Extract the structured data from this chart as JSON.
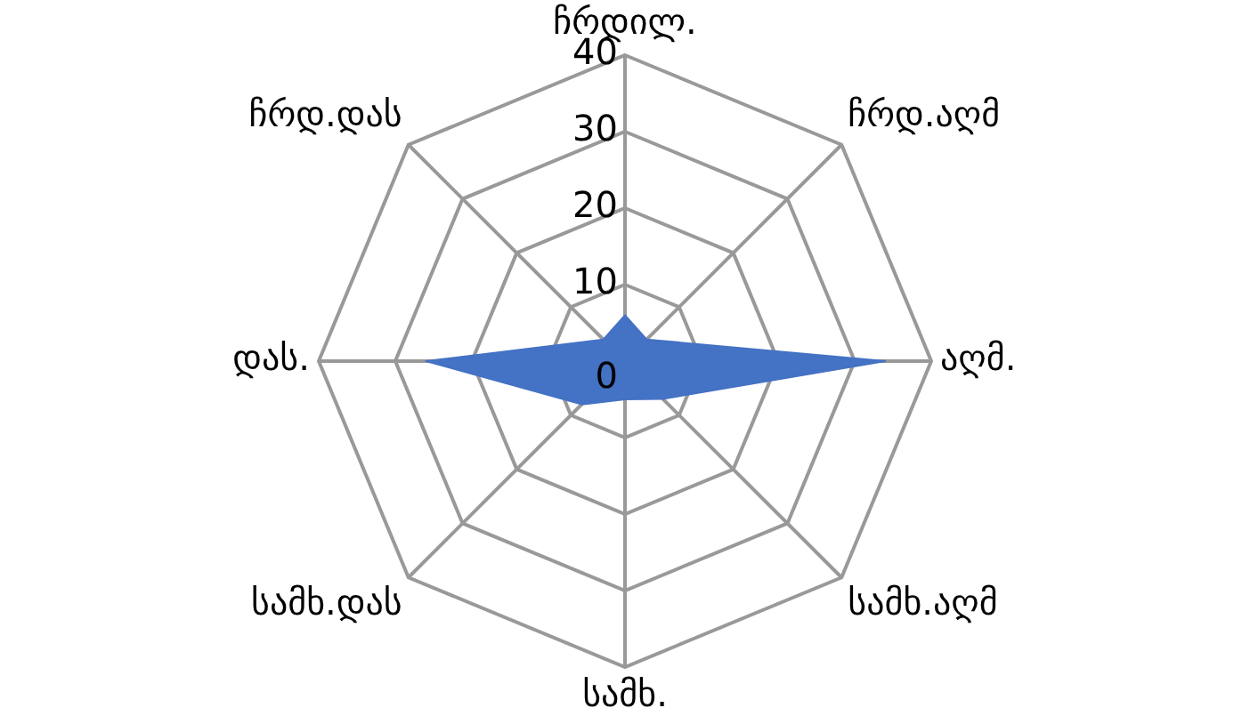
{
  "chart_data": {
    "type": "radar",
    "categories": [
      "ჩრდილ.",
      "ჩრდ.აღმ",
      "აღმ.",
      "სამხ.აღმ",
      "სამხ.",
      "სამხ.დას",
      "დას.",
      "ჩრდ.დას"
    ],
    "series": [
      {
        "color": "#4472c4",
        "values": [
          6,
          4,
          34,
          7,
          5,
          8,
          26,
          4
        ]
      }
    ],
    "ylim": [
      0,
      40
    ],
    "yticks": [
      0,
      10,
      20,
      30,
      40
    ],
    "grid": true,
    "legend": false,
    "marker": "none"
  }
}
